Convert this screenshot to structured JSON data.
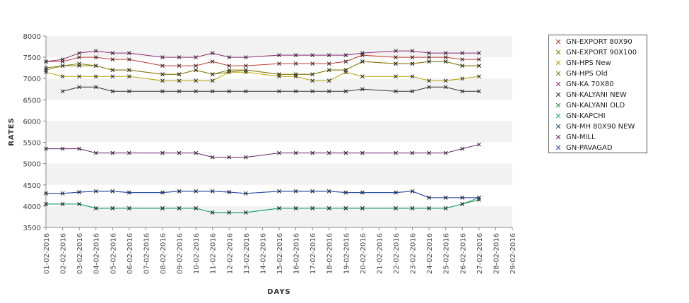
{
  "chart_data": {
    "type": "line",
    "xlabel": "DAYS",
    "ylabel": "RATES",
    "ylim": [
      3500,
      8000
    ],
    "y_ticks": [
      3500,
      4000,
      4500,
      5000,
      5500,
      6000,
      6500,
      7000,
      7500,
      8000
    ],
    "grid": "alternating horizontal bands",
    "legend_position": "right",
    "categories": [
      "01-02-2016",
      "02-02-2016",
      "03-02-2016",
      "04-02-2016",
      "05-02-2016",
      "06-02-2016",
      "07-02-2016",
      "08-02-2016",
      "09-02-2016",
      "10-02-2016",
      "11-02-2016",
      "12-02-2016",
      "13-02-2016",
      "14-02-2016",
      "15-02-2016",
      "16-02-2016",
      "17-02-2016",
      "18-02-2016",
      "19-02-2016",
      "20-02-2016",
      "21-02-2016",
      "22-02-2016",
      "23-02-2016",
      "24-02-2016",
      "25-02-2016",
      "26-02-2016",
      "27-02-2016",
      "28-02-2016",
      "29-02-2016"
    ],
    "series": [
      {
        "name": "GN-EXPORT 80X90",
        "color": "#c0392b",
        "values": [
          7400,
          7400,
          7500,
          7500,
          7450,
          7450,
          null,
          7300,
          7300,
          7300,
          7400,
          7300,
          7300,
          null,
          7350,
          7350,
          7350,
          7350,
          7400,
          7550,
          null,
          7500,
          7500,
          7500,
          7500,
          7450,
          7450,
          null,
          null
        ]
      },
      {
        "name": "GN-EXPORT 90X100",
        "color": "#7f7f00",
        "values": [
          7250,
          7300,
          7300,
          7300,
          7200,
          7200,
          null,
          7100,
          7100,
          7200,
          7100,
          7200,
          7200,
          null,
          7100,
          7100,
          7100,
          7200,
          7200,
          7400,
          null,
          7350,
          7350,
          7400,
          7400,
          7300,
          7300,
          null,
          null
        ]
      },
      {
        "name": "GN-HPS New",
        "color": "#b5a300",
        "values": [
          7150,
          7050,
          7050,
          7050,
          7050,
          7050,
          null,
          6950,
          6950,
          6950,
          6950,
          7150,
          7150,
          null,
          7050,
          7050,
          6950,
          6950,
          7150,
          7050,
          null,
          7050,
          7050,
          6950,
          6950,
          7000,
          7050,
          null,
          null
        ]
      },
      {
        "name": "GN-HPS Old",
        "color": "#8b7b10",
        "values": [
          7200,
          7300,
          7350,
          7300,
          7200,
          7200,
          null,
          7100,
          7100,
          7200,
          7100,
          7150,
          7200,
          null,
          7100,
          7100,
          7100,
          7200,
          7200,
          7400,
          null,
          7350,
          7350,
          7400,
          7400,
          7300,
          7300,
          null,
          null
        ]
      },
      {
        "name": "GN-KA 70X80",
        "color": "#8e2b7a",
        "values": [
          7400,
          7450,
          7600,
          7650,
          7600,
          7600,
          null,
          7500,
          7500,
          7500,
          7600,
          7500,
          7500,
          null,
          7550,
          7550,
          7550,
          7550,
          7550,
          7600,
          null,
          7650,
          7650,
          7600,
          7600,
          7600,
          7600,
          null,
          null
        ]
      },
      {
        "name": "GN-KALYANI NEW",
        "color": "#333333",
        "values": [
          null,
          6700,
          6800,
          6800,
          6700,
          6700,
          null,
          6700,
          6700,
          6700,
          6700,
          6700,
          6700,
          null,
          6700,
          6700,
          6700,
          6700,
          6700,
          6750,
          null,
          6700,
          6700,
          6800,
          6800,
          6700,
          6700,
          null,
          null
        ]
      },
      {
        "name": "GN-KALYANI OLD",
        "color": "#2e8b3a",
        "values": [
          4050,
          4050,
          4050,
          3950,
          3950,
          3950,
          null,
          3950,
          3950,
          3950,
          3850,
          3850,
          3850,
          null,
          3950,
          3950,
          3950,
          3950,
          3950,
          3950,
          null,
          3950,
          3950,
          3950,
          3950,
          4050,
          4150,
          null,
          null
        ]
      },
      {
        "name": "GN-KAPCHI",
        "color": "#1aa38c",
        "values": [
          4050,
          4050,
          4050,
          3950,
          3950,
          3950,
          null,
          3950,
          3950,
          3950,
          3850,
          3850,
          3850,
          null,
          3950,
          3950,
          3950,
          3950,
          3950,
          3950,
          null,
          3950,
          3950,
          3950,
          3950,
          4050,
          4200,
          null,
          null
        ]
      },
      {
        "name": "GN-MH 80X90 NEW",
        "color": "#1e4f6e",
        "values": [
          4300,
          4300,
          4330,
          4350,
          4350,
          4320,
          null,
          4320,
          4350,
          4350,
          4350,
          4330,
          4300,
          null,
          4350,
          4350,
          4350,
          4350,
          4320,
          4320,
          null,
          4320,
          4350,
          4200,
          4200,
          4200,
          4200,
          null,
          null
        ]
      },
      {
        "name": "GN-MILL",
        "color": "#6a1b6a",
        "values": [
          5350,
          5350,
          5350,
          5250,
          5250,
          5250,
          null,
          5250,
          5250,
          5250,
          5150,
          5150,
          5150,
          null,
          5250,
          5250,
          5250,
          5250,
          5250,
          5250,
          null,
          5250,
          5250,
          5250,
          5250,
          5350,
          5450,
          null,
          null
        ]
      },
      {
        "name": "GN-PAVAGAD",
        "color": "#2a4bb0",
        "values": [
          4300,
          4300,
          4330,
          4350,
          4350,
          4320,
          null,
          4320,
          4350,
          4350,
          4350,
          4330,
          4300,
          null,
          4350,
          4350,
          4350,
          4350,
          4320,
          4320,
          null,
          4320,
          4350,
          4200,
          4200,
          4200,
          4200,
          null,
          null
        ]
      }
    ]
  }
}
